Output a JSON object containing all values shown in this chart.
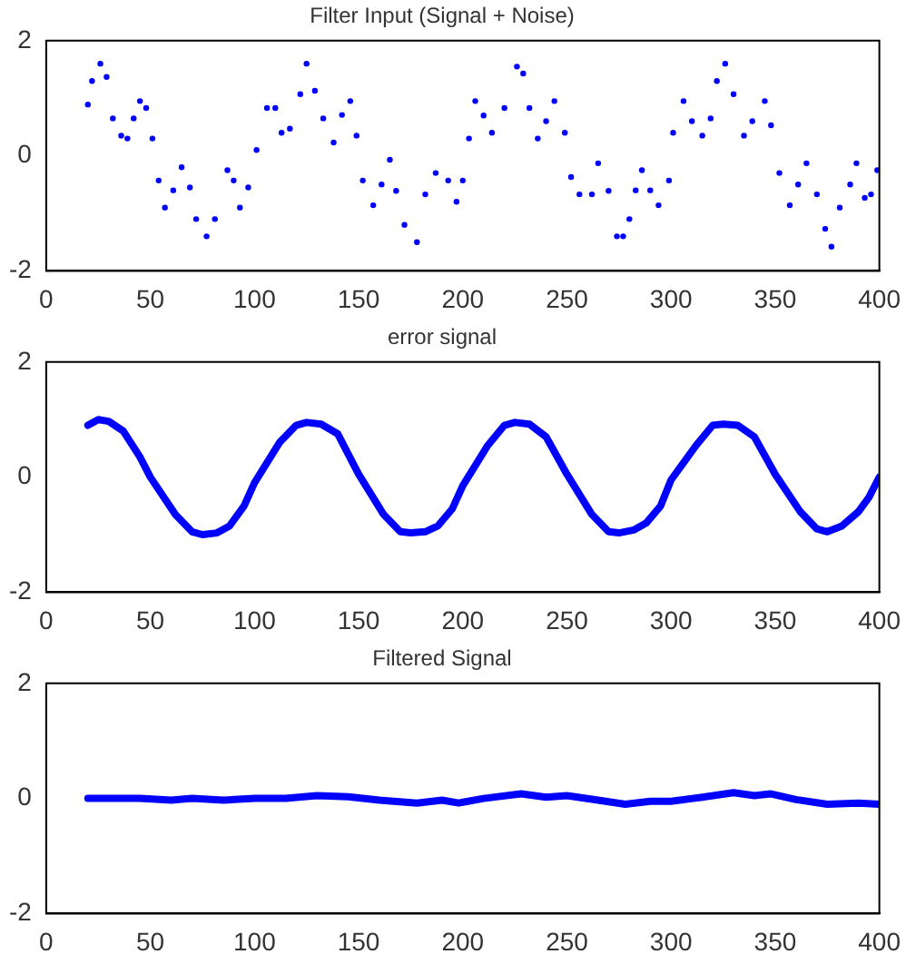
{
  "chart_data": [
    {
      "type": "scatter",
      "title": "Filter Input (Signal + Noise)",
      "color": "#0000ff",
      "marker": "circle",
      "xlim": [
        0,
        400
      ],
      "xticks": [
        0,
        50,
        100,
        150,
        200,
        250,
        300,
        350,
        400
      ],
      "ylim": [
        -2,
        2
      ],
      "yticks": [
        -2,
        0,
        2
      ],
      "x": [
        20,
        22,
        26,
        29,
        32,
        36,
        39,
        42,
        45,
        48,
        51,
        54,
        57,
        61,
        65,
        69,
        72,
        77,
        81,
        87,
        90,
        93,
        97,
        101,
        106,
        110,
        113,
        117,
        122,
        125,
        129,
        133,
        138,
        142,
        146,
        149,
        152,
        157,
        161,
        165,
        168,
        172,
        178,
        182,
        187,
        193,
        197,
        200,
        203,
        206,
        210,
        214,
        220,
        226,
        229,
        232,
        236,
        240,
        244,
        249,
        252,
        256,
        262,
        265,
        270,
        274,
        277,
        280,
        283,
        286,
        290,
        294,
        299,
        301,
        306,
        310,
        315,
        319,
        322,
        326,
        330,
        335,
        339,
        345,
        348,
        352,
        357,
        361,
        365,
        370,
        374,
        377,
        381,
        386,
        389,
        393,
        396,
        399
      ],
      "values": [
        0.89,
        1.3,
        1.6,
        1.37,
        0.65,
        0.35,
        0.3,
        0.65,
        0.95,
        0.83,
        0.3,
        -0.43,
        -0.9,
        -0.6,
        -0.2,
        -0.55,
        -1.1,
        -1.4,
        -1.1,
        -0.25,
        -0.43,
        -0.9,
        -0.55,
        0.1,
        0.83,
        0.83,
        0.4,
        0.47,
        1.07,
        1.6,
        1.13,
        0.65,
        0.23,
        0.71,
        0.95,
        0.35,
        -0.43,
        -0.86,
        -0.5,
        -0.07,
        -0.61,
        -1.2,
        -1.5,
        -0.67,
        -0.3,
        -0.43,
        -0.8,
        -0.43,
        0.3,
        0.95,
        0.7,
        0.4,
        0.83,
        1.55,
        1.43,
        0.83,
        0.3,
        0.6,
        0.95,
        0.4,
        -0.37,
        -0.67,
        -0.67,
        -0.13,
        -0.61,
        -1.4,
        -1.4,
        -1.1,
        -0.6,
        -0.25,
        -0.6,
        -0.86,
        -0.43,
        0.4,
        0.95,
        0.6,
        0.35,
        0.65,
        1.3,
        1.6,
        1.07,
        0.35,
        0.6,
        0.95,
        0.53,
        -0.3,
        -0.86,
        -0.5,
        -0.13,
        -0.67,
        -1.27,
        -1.58,
        -0.9,
        -0.5,
        -0.13,
        -0.73,
        -0.67,
        -0.25
      ]
    },
    {
      "type": "line",
      "title": "error signal",
      "color": "#0000ff",
      "marker": "none",
      "xlim": [
        0,
        400
      ],
      "xticks": [
        0,
        50,
        100,
        150,
        200,
        250,
        300,
        350,
        400
      ],
      "ylim": [
        -2,
        2
      ],
      "yticks": [
        -2,
        0,
        2
      ],
      "x": [
        20,
        25,
        30,
        37,
        45,
        50,
        62,
        70,
        75,
        82,
        88,
        95,
        100,
        112,
        120,
        125,
        132,
        140,
        150,
        162,
        170,
        175,
        182,
        188,
        195,
        200,
        212,
        220,
        225,
        232,
        240,
        250,
        262,
        270,
        275,
        282,
        288,
        295,
        300,
        312,
        320,
        325,
        332,
        340,
        350,
        362,
        370,
        375,
        382,
        390,
        395,
        400
      ],
      "values": [
        0.9,
        1.0,
        0.97,
        0.8,
        0.35,
        0.0,
        -0.65,
        -0.95,
        -1.0,
        -0.97,
        -0.85,
        -0.5,
        -0.1,
        0.6,
        0.9,
        0.95,
        0.92,
        0.75,
        0.05,
        -0.65,
        -0.95,
        -0.97,
        -0.95,
        -0.85,
        -0.55,
        -0.15,
        0.55,
        0.9,
        0.95,
        0.92,
        0.7,
        0.05,
        -0.65,
        -0.95,
        -0.97,
        -0.92,
        -0.8,
        -0.5,
        -0.05,
        0.55,
        0.9,
        0.92,
        0.9,
        0.7,
        0.05,
        -0.6,
        -0.9,
        -0.95,
        -0.85,
        -0.6,
        -0.35,
        0.0
      ]
    },
    {
      "type": "line",
      "title": "Filtered Signal",
      "color": "#0000ff",
      "marker": "none",
      "xlim": [
        0,
        400
      ],
      "xticks": [
        0,
        50,
        100,
        150,
        200,
        250,
        300,
        350,
        400
      ],
      "ylim": [
        -2,
        2
      ],
      "yticks": [
        -2,
        0,
        2
      ],
      "x": [
        20,
        30,
        45,
        60,
        70,
        85,
        100,
        115,
        130,
        145,
        160,
        178,
        190,
        198,
        210,
        228,
        240,
        250,
        265,
        278,
        290,
        300,
        315,
        330,
        340,
        348,
        360,
        375,
        390,
        400
      ],
      "values": [
        0,
        0,
        0,
        -0.03,
        0,
        -0.03,
        0,
        0,
        0.05,
        0.03,
        -0.03,
        -0.08,
        -0.03,
        -0.08,
        0,
        0.08,
        0.02,
        0.05,
        -0.03,
        -0.1,
        -0.05,
        -0.05,
        0.02,
        0.1,
        0.05,
        0.08,
        -0.02,
        -0.1,
        -0.08,
        -0.1
      ]
    }
  ]
}
